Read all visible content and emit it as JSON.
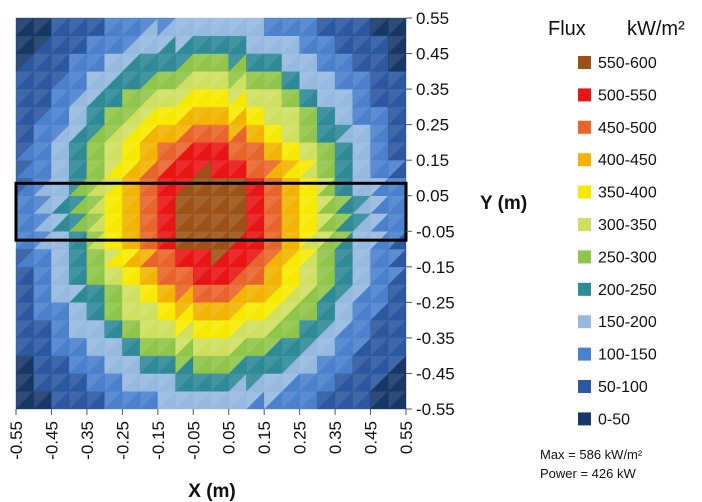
{
  "chart_data": {
    "type": "heatmap",
    "x_ticks": [
      "-0.55",
      "-0.45",
      "-0.35",
      "-0.25",
      "-0.15",
      "-0.05",
      "0.05",
      "0.15",
      "0.25",
      "0.35",
      "0.45",
      "0.55"
    ],
    "y_ticks": [
      "0.55",
      "0.45",
      "0.35",
      "0.25",
      "0.15",
      "0.05",
      "-0.05",
      "-0.15",
      "-0.25",
      "-0.35",
      "-0.45",
      "-0.55"
    ],
    "xlabel": "X (m)",
    "ylabel": "Y (m)",
    "xlim": [
      -0.55,
      0.55
    ],
    "ylim": [
      -0.55,
      0.55
    ],
    "legend_title": "Flux",
    "legend_unit": "kW/m²",
    "legend_position": "right",
    "bands": [
      {
        "label": "550-600",
        "min": 550,
        "max": 600,
        "color": "#9c5216"
      },
      {
        "label": "500-550",
        "min": 500,
        "max": 550,
        "color": "#e81515"
      },
      {
        "label": "450-500",
        "min": 450,
        "max": 500,
        "color": "#e8642b"
      },
      {
        "label": "400-450",
        "min": 400,
        "max": 450,
        "color": "#f2b400"
      },
      {
        "label": "350-400",
        "min": 350,
        "max": 400,
        "color": "#f7ea00"
      },
      {
        "label": "300-350",
        "min": 300,
        "max": 350,
        "color": "#cfe060"
      },
      {
        "label": "250-300",
        "min": 250,
        "max": 300,
        "color": "#8fc548"
      },
      {
        "label": "200-250",
        "min": 200,
        "max": 250,
        "color": "#2d8a96"
      },
      {
        "label": "150-200",
        "min": 150,
        "max": 200,
        "color": "#96b9e0"
      },
      {
        "label": "100-150",
        "min": 100,
        "max": 150,
        "color": "#4a80cc"
      },
      {
        "label": "50-100",
        "min": 50,
        "max": 100,
        "color": "#2b58a0"
      },
      {
        "label": "0-50",
        "min": 0,
        "max": 50,
        "color": "#173866"
      }
    ],
    "peak": {
      "x": 0.0,
      "y": 0.0,
      "value": 586
    },
    "highlight_rect": {
      "x_range": [
        -0.55,
        0.55
      ],
      "y_range": [
        -0.075,
        0.085
      ]
    },
    "annotations": [
      "Max = 586 kW/m²",
      "Power = 426 kW"
    ]
  }
}
